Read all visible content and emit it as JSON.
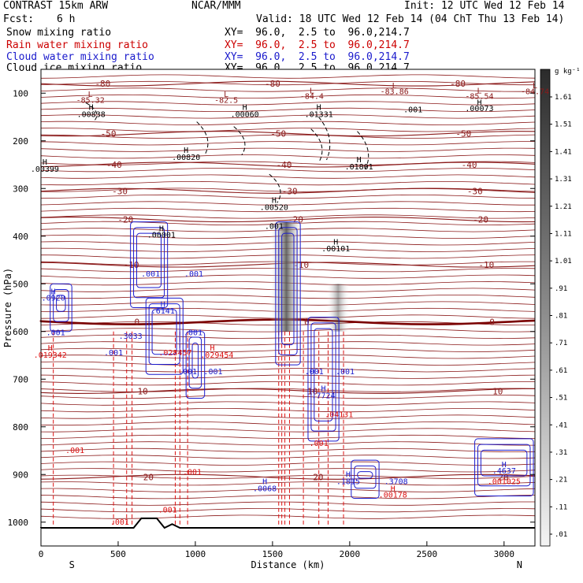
{
  "header": {
    "title": "CONTRAST 15km ARW",
    "center": "NCAR/MMM",
    "init": "Init: 12 UTC Wed 12 Feb 14",
    "fcst_label": "Fcst:",
    "fcst_value": "6 h",
    "valid": "Valid: 18 UTC Wed 12 Feb 14 (04 ChT Thu 13 Feb 14)"
  },
  "fields": [
    {
      "name": "Snow mixing ratio",
      "xy": "XY=  96.0,  2.5 to  96.0,214.7",
      "color": "#000000"
    },
    {
      "name": "Rain water mixing ratio",
      "xy": "XY=  96.0,  2.5 to  96.0,214.7",
      "color": "#cc0000"
    },
    {
      "name": "Cloud water mixing ratio",
      "xy": "XY=  96.0,  2.5 to  96.0,214.7",
      "color": "#1a1acc"
    },
    {
      "name": "Cloud ice mixing ratio",
      "xy": "XY=  96.0,  2.5 to  96.0,214.7",
      "color": "#000000"
    }
  ],
  "colors": {
    "temperature": "#8b1a1a",
    "freezing_level": "#7a0000",
    "rain": "#dd1111",
    "cloud_water": "#1a1acc",
    "snow": "#000000"
  },
  "chart_data": {
    "type": "heatmap",
    "xlabel": "Distance (km)",
    "ylabel": "Pressure (hPa)",
    "xlim": [
      0,
      3200
    ],
    "ylim": [
      1050,
      50
    ],
    "x_ticks": [
      0,
      500,
      1000,
      1500,
      2000,
      2500,
      3000
    ],
    "y_ticks": [
      100,
      200,
      300,
      400,
      500,
      600,
      700,
      800,
      900,
      1000
    ],
    "left_end": "S",
    "right_end": "N",
    "colorbar": {
      "unit": "g kg⁻¹",
      "levels": [
        "1.61",
        "1.51",
        "1.41",
        "1.31",
        "1.21",
        "1.11",
        "1.01",
        ".91",
        ".81",
        ".71",
        ".61",
        ".51",
        ".41",
        ".31",
        ".21",
        ".11",
        ".01"
      ]
    },
    "temperature_contours": [
      {
        "label": "-80",
        "p": 80
      },
      {
        "label": "-50",
        "p": 185
      },
      {
        "label": "-40",
        "p": 250
      },
      {
        "label": "-30",
        "p": 305
      },
      {
        "label": "-20",
        "p": 365
      },
      {
        "label": "-10",
        "p": 460
      },
      {
        "label": "0",
        "p": 580
      },
      {
        "label": "10",
        "p": 725
      },
      {
        "label": "20",
        "p": 905
      }
    ],
    "annotations": [
      {
        "text": "L",
        "x": 320,
        "p": 108,
        "color": "temp"
      },
      {
        "text": "-85.32",
        "x": 320,
        "p": 120,
        "color": "temp"
      },
      {
        "text": "L",
        "x": 1200,
        "p": 108,
        "color": "temp"
      },
      {
        "text": "-82.5",
        "x": 1200,
        "p": 120,
        "color": "temp"
      },
      {
        "text": "L",
        "x": 1755,
        "p": 100,
        "color": "temp"
      },
      {
        "text": "-84.4",
        "x": 1755,
        "p": 112,
        "color": "temp"
      },
      {
        "text": "L",
        "x": 2290,
        "p": 90,
        "color": "temp"
      },
      {
        "text": "-83.86",
        "x": 2290,
        "p": 102,
        "color": "temp"
      },
      {
        "text": "L",
        "x": 2840,
        "p": 100,
        "color": "temp"
      },
      {
        "text": "-85.54",
        "x": 2840,
        "p": 112,
        "color": "temp"
      },
      {
        "text": "L",
        "x": 3200,
        "p": 90,
        "color": "temp"
      },
      {
        "text": "-84.74",
        "x": 3200,
        "p": 102,
        "color": "temp"
      },
      {
        "text": "H",
        "x": 325,
        "p": 135,
        "color": "snow"
      },
      {
        "text": ".00838",
        "x": 325,
        "p": 150,
        "color": "snow"
      },
      {
        "text": "H",
        "x": 1320,
        "p": 135,
        "color": "snow"
      },
      {
        "text": ".00060",
        "x": 1320,
        "p": 150,
        "color": "snow"
      },
      {
        "text": "H",
        "x": 1800,
        "p": 135,
        "color": "snow"
      },
      {
        "text": ".01331",
        "x": 1800,
        "p": 150,
        "color": "snow"
      },
      {
        "text": "H",
        "x": 2840,
        "p": 125,
        "color": "snow"
      },
      {
        "text": ".00073",
        "x": 2840,
        "p": 138,
        "color": "snow"
      },
      {
        "text": ".001",
        "x": 2410,
        "p": 140,
        "color": "snow"
      },
      {
        "text": "H",
        "x": 940,
        "p": 225,
        "color": "snow"
      },
      {
        "text": ".00820",
        "x": 940,
        "p": 240,
        "color": "snow"
      },
      {
        "text": "H",
        "x": 25,
        "p": 250,
        "color": "snow"
      },
      {
        "text": ".00399",
        "x": 25,
        "p": 265,
        "color": "snow"
      },
      {
        "text": "H",
        "x": 2060,
        "p": 245,
        "color": "snow"
      },
      {
        "text": ".01801",
        "x": 2060,
        "p": 260,
        "color": "snow"
      },
      {
        "text": "H",
        "x": 1510,
        "p": 330,
        "color": "snow"
      },
      {
        "text": ".00520",
        "x": 1510,
        "p": 345,
        "color": "snow"
      },
      {
        "text": ".001",
        "x": 1510,
        "p": 385,
        "color": "snow"
      },
      {
        "text": "H",
        "x": 780,
        "p": 390,
        "color": "snow"
      },
      {
        "text": ".00001",
        "x": 780,
        "p": 403,
        "color": "snow"
      },
      {
        "text": "H",
        "x": 1910,
        "p": 418,
        "color": "snow"
      },
      {
        "text": ".00101",
        "x": 1910,
        "p": 432,
        "color": "snow"
      },
      {
        "text": "H",
        "x": 80,
        "p": 522,
        "color": "cloud"
      },
      {
        "text": ".0920",
        "x": 80,
        "p": 535,
        "color": "cloud"
      },
      {
        "text": ".001",
        "x": 710,
        "p": 485,
        "color": "cloud"
      },
      {
        "text": ".001",
        "x": 990,
        "p": 485,
        "color": "cloud"
      },
      {
        "text": ".001",
        "x": 95,
        "p": 608,
        "color": "cloud"
      },
      {
        "text": "H",
        "x": 790,
        "p": 548,
        "color": "cloud"
      },
      {
        "text": ".6141",
        "x": 790,
        "p": 562,
        "color": "cloud"
      },
      {
        "text": ".3033",
        "x": 580,
        "p": 615,
        "color": "cloud"
      },
      {
        "text": ".001",
        "x": 470,
        "p": 650,
        "color": "cloud"
      },
      {
        "text": ".001",
        "x": 985,
        "p": 608,
        "color": "cloud"
      },
      {
        "text": "H",
        "x": 60,
        "p": 640,
        "color": "rain"
      },
      {
        "text": ".019342",
        "x": 60,
        "p": 655,
        "color": "rain"
      },
      {
        "text": ".028457",
        "x": 870,
        "p": 650,
        "color": "rain"
      },
      {
        "text": "H",
        "x": 1110,
        "p": 640,
        "color": "rain"
      },
      {
        "text": ".029454",
        "x": 1140,
        "p": 655,
        "color": "rain"
      },
      {
        "text": ".001",
        "x": 1115,
        "p": 690,
        "color": "cloud"
      },
      {
        "text": ".001",
        "x": 950,
        "p": 690,
        "color": "cloud"
      },
      {
        "text": ".001",
        "x": 1770,
        "p": 690,
        "color": "cloud"
      },
      {
        "text": ".001",
        "x": 1970,
        "p": 690,
        "color": "cloud"
      },
      {
        "text": "H",
        "x": 1830,
        "p": 725,
        "color": "cloud"
      },
      {
        "text": ".7724",
        "x": 1830,
        "p": 740,
        "color": "cloud"
      },
      {
        "text": ".04131",
        "x": 1930,
        "p": 780,
        "color": "rain"
      },
      {
        "text": ".001",
        "x": 1800,
        "p": 840,
        "color": "rain"
      },
      {
        "text": ".001",
        "x": 220,
        "p": 855,
        "color": "rain"
      },
      {
        "text": ".001",
        "x": 980,
        "p": 900,
        "color": "rain"
      },
      {
        "text": ".001",
        "x": 820,
        "p": 980,
        "color": "rain"
      },
      {
        "text": ".001",
        "x": 510,
        "p": 1005,
        "color": "rain"
      },
      {
        "text": "H",
        "x": 1990,
        "p": 905,
        "color": "cloud"
      },
      {
        "text": ".1815",
        "x": 1990,
        "p": 920,
        "color": "cloud"
      },
      {
        "text": ".3708",
        "x": 2300,
        "p": 920,
        "color": "cloud"
      },
      {
        "text": "H",
        "x": 2280,
        "p": 935,
        "color": "rain"
      },
      {
        "text": ".00178",
        "x": 2280,
        "p": 948,
        "color": "rain"
      },
      {
        "text": "H",
        "x": 1450,
        "p": 920,
        "color": "cloud"
      },
      {
        "text": ".0068",
        "x": 1450,
        "p": 935,
        "color": "cloud"
      },
      {
        "text": "H",
        "x": 3000,
        "p": 885,
        "color": "cloud"
      },
      {
        "text": ".4637",
        "x": 3000,
        "p": 898,
        "color": "cloud"
      },
      {
        "text": ".001025",
        "x": 3000,
        "p": 920,
        "color": "rain"
      }
    ]
  }
}
